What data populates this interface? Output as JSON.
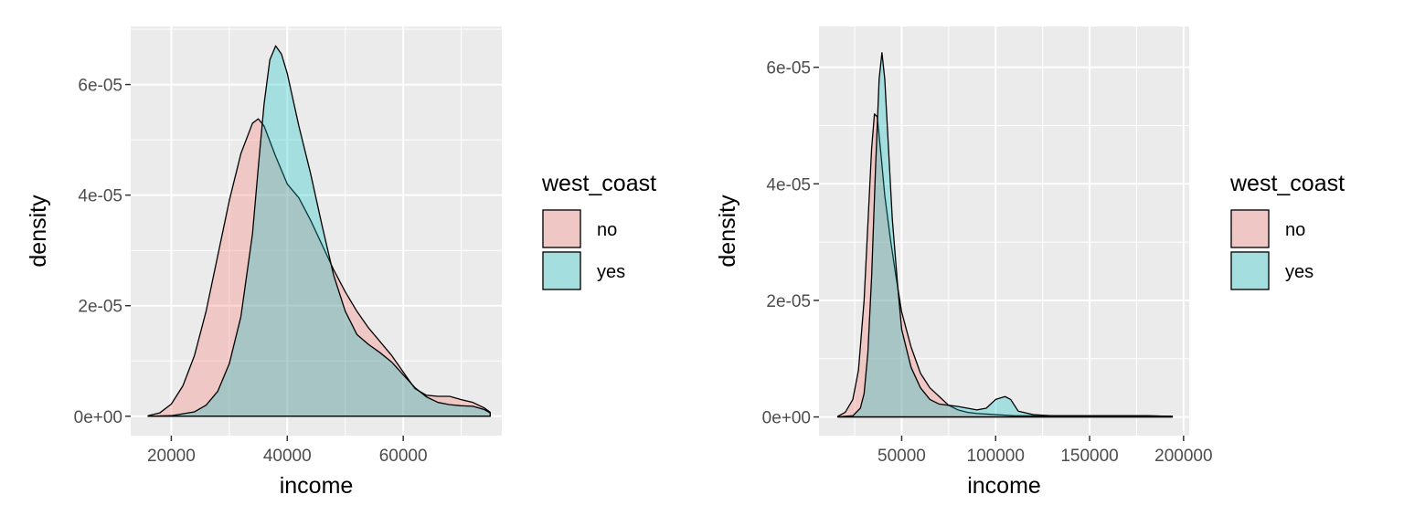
{
  "colors": {
    "panel_bg": "#EBEBEB",
    "grid_major": "#FFFFFF",
    "no": "#F8766D",
    "yes": "#00BFC4",
    "outline": "#000000",
    "tick": "#333333"
  },
  "chart_data": [
    {
      "type": "area",
      "title": "",
      "xlabel": "income",
      "ylabel": "density",
      "xlim": [
        13000,
        77000
      ],
      "ylim": [
        -3.5e-06,
        7.05e-05
      ],
      "x_ticks": [
        20000,
        40000,
        60000
      ],
      "x_tick_labels": [
        "20000",
        "40000",
        "60000"
      ],
      "y_ticks": [
        0,
        2e-05,
        4e-05,
        6e-05
      ],
      "y_tick_labels": [
        "0e+00",
        "2e-05",
        "4e-05",
        "6e-05"
      ],
      "grid": true,
      "legend": {
        "title": "west_coast",
        "position": "right",
        "entries": [
          "no",
          "yes"
        ]
      },
      "series": [
        {
          "name": "no",
          "x": [
            16000,
            18000,
            20000,
            22000,
            24000,
            26000,
            28000,
            30000,
            32000,
            34000,
            35000,
            36000,
            38000,
            40000,
            42000,
            44000,
            46000,
            48000,
            50000,
            52000,
            54000,
            56000,
            58000,
            60000,
            62000,
            64000,
            66000,
            68000,
            70000,
            72000,
            74000,
            75000
          ],
          "y": [
            1e-07,
            6e-07,
            2.2e-06,
            5.5e-06,
            1.1e-05,
            1.9e-05,
            2.9e-05,
            3.9e-05,
            4.75e-05,
            5.3e-05,
            5.38e-05,
            5.25e-05,
            4.7e-05,
            4.2e-05,
            3.95e-05,
            3.55e-05,
            3.1e-05,
            2.65e-05,
            2.25e-05,
            1.9e-05,
            1.6e-05,
            1.35e-05,
            1.1e-05,
            8e-06,
            5e-06,
            3.8e-06,
            3.6e-06,
            3.6e-06,
            3e-06,
            2.5e-06,
            1.5e-06,
            7e-07
          ]
        },
        {
          "name": "yes",
          "x": [
            16000,
            20000,
            24000,
            26000,
            28000,
            30000,
            32000,
            34000,
            35000,
            36000,
            37000,
            38000,
            39000,
            40000,
            42000,
            44000,
            46000,
            48000,
            50000,
            52000,
            54000,
            56000,
            58000,
            60000,
            62000,
            64000,
            66000,
            68000,
            70000,
            72000,
            74000,
            75000
          ],
          "y": [
            0,
            1e-07,
            8e-07,
            2e-06,
            4.5e-06,
            9.5e-06,
            1.8e-05,
            3.3e-05,
            4.5e-05,
            5.65e-05,
            6.45e-05,
            6.7e-05,
            6.55e-05,
            6.2e-05,
            5.25e-05,
            4.4e-05,
            3.45e-05,
            2.55e-05,
            1.9e-05,
            1.48e-05,
            1.3e-05,
            1.15e-05,
            9.8e-06,
            7.5e-06,
            5.2e-06,
            3.5e-06,
            2.5e-06,
            2.1e-06,
            1.9e-06,
            1.8e-06,
            1.2e-06,
            6e-07
          ]
        }
      ]
    },
    {
      "type": "area",
      "title": "",
      "xlabel": "income",
      "ylabel": "density",
      "xlim": [
        6000,
        203000
      ],
      "ylim": [
        -3.2e-06,
        6.7e-05
      ],
      "x_ticks": [
        50000,
        100000,
        150000,
        200000
      ],
      "x_tick_labels": [
        "50000",
        "100000",
        "150000",
        "200000"
      ],
      "y_ticks": [
        0,
        2e-05,
        4e-05,
        6e-05
      ],
      "y_tick_labels": [
        "0e+00",
        "2e-05",
        "4e-05",
        "6e-05"
      ],
      "grid": true,
      "legend": {
        "title": "west_coast",
        "position": "right",
        "entries": [
          "no",
          "yes"
        ]
      },
      "series": [
        {
          "name": "no",
          "x": [
            16000,
            20000,
            24000,
            27000,
            30000,
            32000,
            34000,
            35500,
            37000,
            39000,
            41000,
            44000,
            47000,
            50000,
            55000,
            60000,
            65000,
            70000,
            75000,
            80000,
            85000,
            90000,
            95000,
            100000,
            105000,
            110000,
            115000,
            120000,
            130000,
            140000,
            150000,
            160000,
            170000,
            180000,
            194000
          ],
          "y": [
            1e-07,
            8e-07,
            3e-06,
            8e-06,
            2e-05,
            3.3e-05,
            4.6e-05,
            5.2e-05,
            5.15e-05,
            4.5e-05,
            3.8e-05,
            3.05e-05,
            2.4e-05,
            1.8e-05,
            1.2e-05,
            7.5e-06,
            5e-06,
            3.5e-06,
            2e-06,
            1.2e-06,
            8e-07,
            6e-07,
            5e-07,
            4e-07,
            3e-07,
            2e-07,
            2e-07,
            2e-07,
            2e-07,
            2e-07,
            2e-07,
            2e-07,
            2e-07,
            2e-07,
            1e-07
          ]
        },
        {
          "name": "yes",
          "x": [
            16000,
            24000,
            28000,
            30000,
            32000,
            34000,
            36000,
            38000,
            39500,
            41000,
            43000,
            45000,
            48000,
            50000,
            55000,
            60000,
            65000,
            70000,
            75000,
            80000,
            85000,
            90000,
            95000,
            100000,
            105000,
            108000,
            112000,
            120000,
            130000,
            140000,
            150000,
            160000,
            170000,
            180000,
            194000
          ],
          "y": [
            0,
            2e-07,
            1.5e-06,
            4e-06,
            1.1e-05,
            2.4e-05,
            4.2e-05,
            5.8e-05,
            6.25e-05,
            5.8e-05,
            4.6e-05,
            3.4e-05,
            2.2e-05,
            1.5e-05,
            8.5e-06,
            5e-06,
            3e-06,
            2.2e-06,
            2e-06,
            1.8e-06,
            1.5e-06,
            1.2e-06,
            1.5e-06,
            3e-06,
            3.5e-06,
            3e-06,
            1e-06,
            4e-07,
            2e-07,
            2e-07,
            2e-07,
            2e-07,
            2e-07,
            2e-07,
            1e-07
          ]
        }
      ]
    }
  ]
}
